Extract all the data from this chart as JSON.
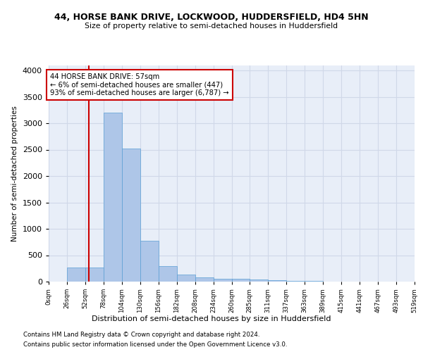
{
  "title1": "44, HORSE BANK DRIVE, LOCKWOOD, HUDDERSFIELD, HD4 5HN",
  "title2": "Size of property relative to semi-detached houses in Huddersfield",
  "xlabel": "Distribution of semi-detached houses by size in Huddersfield",
  "ylabel": "Number of semi-detached properties",
  "footer1": "Contains HM Land Registry data © Crown copyright and database right 2024.",
  "footer2": "Contains public sector information licensed under the Open Government Licence v3.0.",
  "annotation_title": "44 HORSE BANK DRIVE: 57sqm",
  "annotation_line1": "← 6% of semi-detached houses are smaller (447)",
  "annotation_line2": "93% of semi-detached houses are larger (6,787) →",
  "property_size": 57,
  "bar_edges": [
    0,
    26,
    52,
    78,
    104,
    130,
    156,
    182,
    208,
    234,
    260,
    285,
    311,
    337,
    363,
    389,
    415,
    441,
    467,
    493,
    519
  ],
  "bar_heights": [
    0,
    270,
    270,
    3200,
    2520,
    780,
    290,
    130,
    80,
    55,
    50,
    40,
    30,
    15,
    8,
    5,
    3,
    2,
    2,
    1
  ],
  "bar_color": "#aec6e8",
  "bar_edge_color": "#5a9fd4",
  "vline_color": "#cc0000",
  "annotation_box_color": "#cc0000",
  "grid_color": "#d0d8e8",
  "bg_color": "#e8eef8",
  "ylim": [
    0,
    4100
  ],
  "yticks": [
    0,
    500,
    1000,
    1500,
    2000,
    2500,
    3000,
    3500,
    4000
  ],
  "tick_labels": [
    "0sqm",
    "26sqm",
    "52sqm",
    "78sqm",
    "104sqm",
    "130sqm",
    "156sqm",
    "182sqm",
    "208sqm",
    "234sqm",
    "260sqm",
    "285sqm",
    "311sqm",
    "337sqm",
    "363sqm",
    "389sqm",
    "415sqm",
    "441sqm",
    "467sqm",
    "493sqm",
    "519sqm"
  ]
}
